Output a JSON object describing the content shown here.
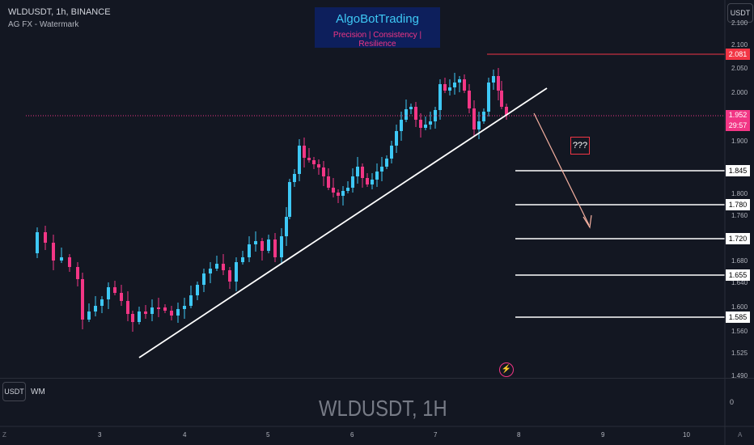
{
  "header": {
    "symbol_line": "WLDUSDT, 1h, BINANCE",
    "indicator_line": "AG FX - Watermark"
  },
  "logo": {
    "title": "AlgoBotTrading",
    "tagline": "Precision  |  Consistency  |  Resilience"
  },
  "currency_button": "USDT",
  "price_labels": {
    "high": "2.081",
    "current_price": "1.952",
    "countdown": "29:57",
    "levels": [
      "1.845",
      "1.780",
      "1.720",
      "1.655",
      "1.585"
    ]
  },
  "price_axis_ticks": [
    "2.100",
    "2.050",
    "2.000",
    "1.900",
    "1.800",
    "1.760",
    "1.680",
    "1.640",
    "1.600",
    "1.560",
    "1.525",
    "1.490"
  ],
  "time_axis": [
    "3",
    "4",
    "5",
    "6",
    "7",
    "8",
    "9",
    "10"
  ],
  "time_axis_edges": {
    "left": "Z",
    "right": "A"
  },
  "annotation": "???",
  "pane": {
    "currency": "USDT",
    "label": "WM",
    "zero": "0"
  },
  "watermark": "WLDUSDT, 1H",
  "colors": {
    "background": "#131722",
    "up_candle": "#3ec8f5",
    "down_candle": "#f23685",
    "trendline": "#ffffff",
    "arrow": "#f5b0a0",
    "high_line": "#f23645"
  }
}
